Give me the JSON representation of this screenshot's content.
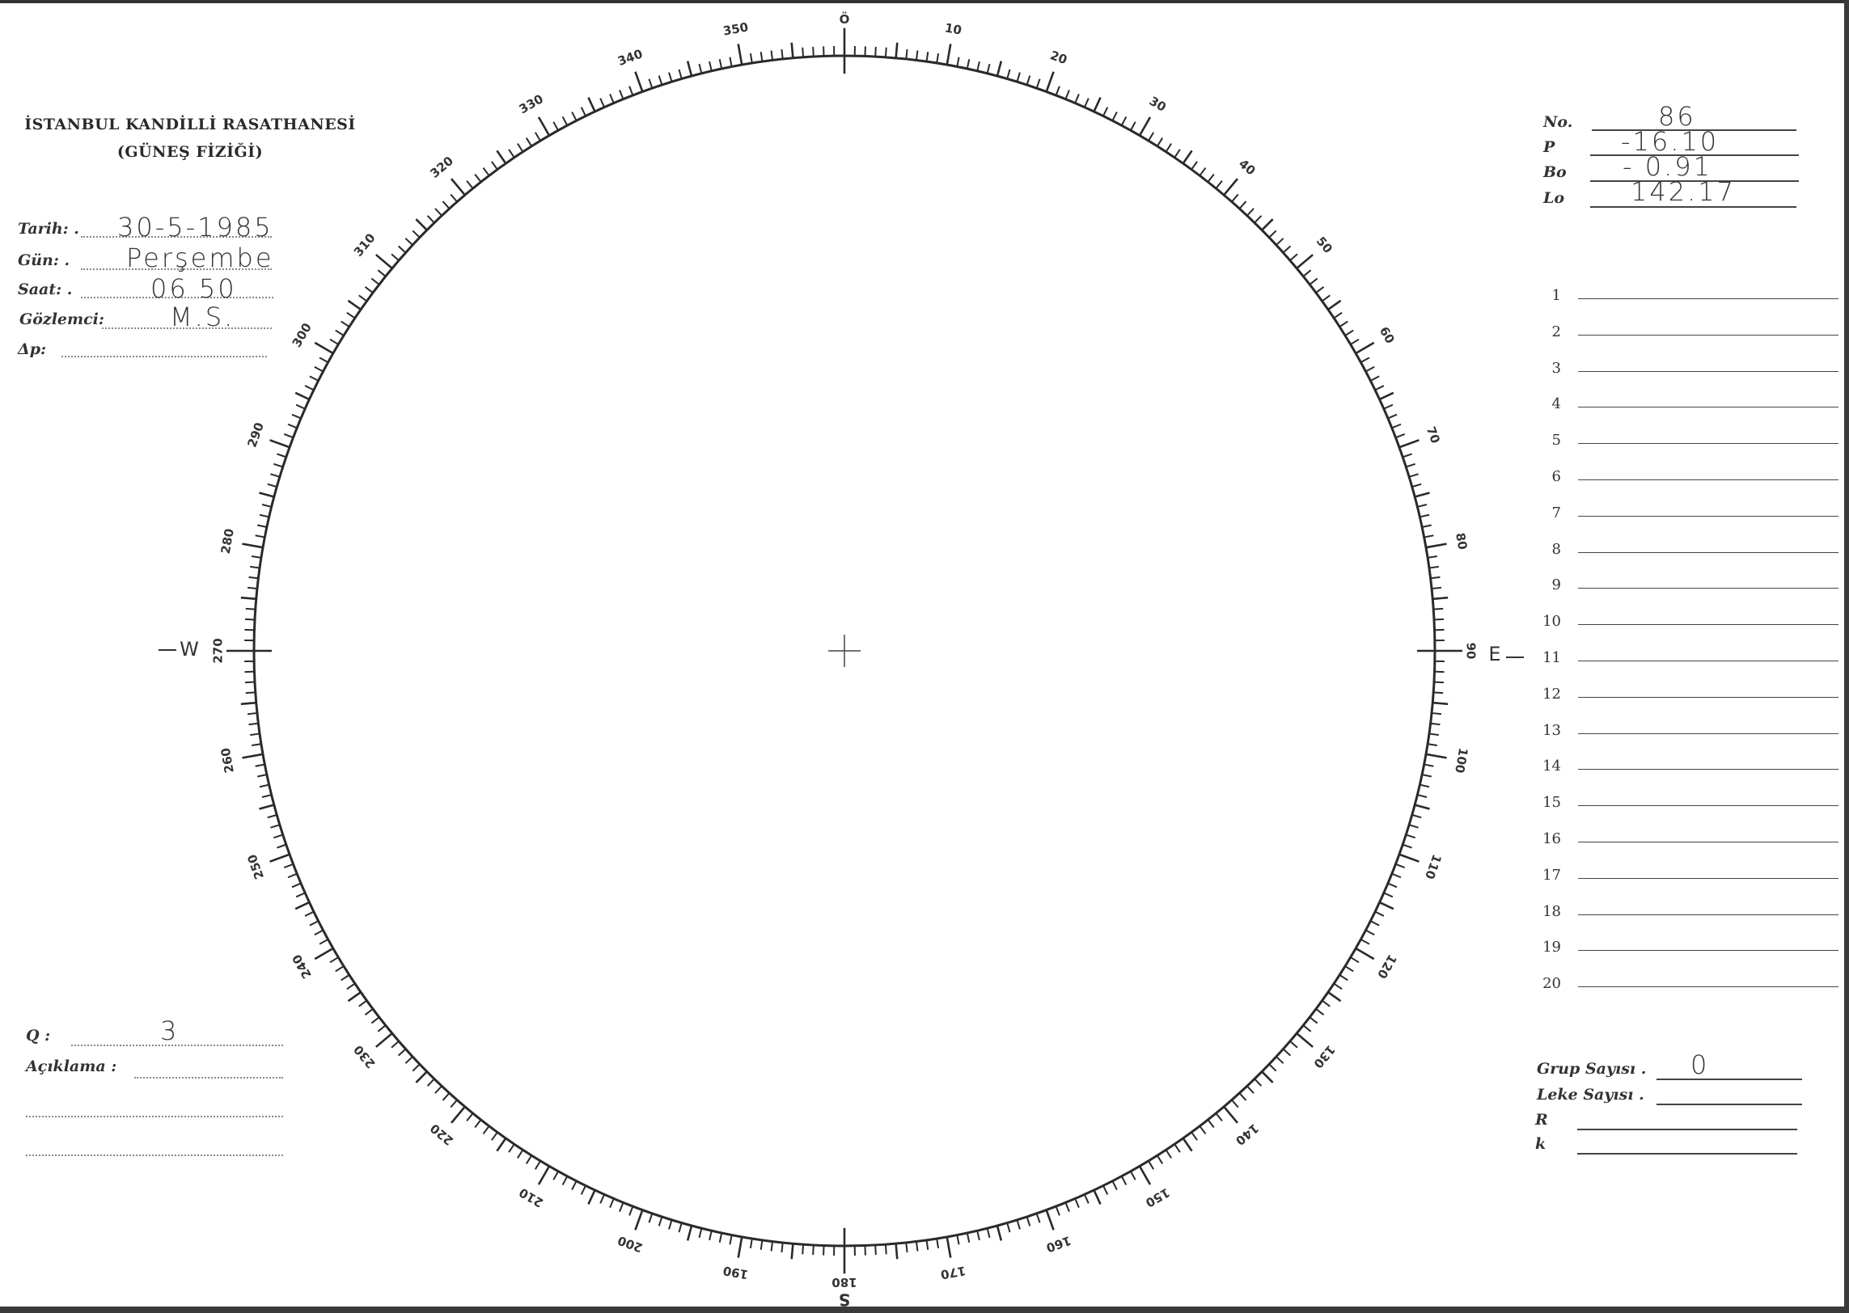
{
  "header": {
    "institution": "İSTANBUL KANDİLLİ RASATHANESİ",
    "department": "(GÜNEŞ FİZİĞİ)"
  },
  "observation": {
    "fields": [
      {
        "label": "Tarih: .",
        "value": "30-5-1985"
      },
      {
        "label": "Gün: .",
        "value": "Perşembe"
      },
      {
        "label": "Saat: .",
        "value": "06 50"
      },
      {
        "label": "Gözlemci:",
        "value": "M.S."
      },
      {
        "label": "Δp:",
        "value": ""
      }
    ]
  },
  "ephemeris": {
    "fields": [
      {
        "label": "No.",
        "value": "86"
      },
      {
        "label": "P",
        "value": "-16.10"
      },
      {
        "label": "Bo",
        "value": "- 0.91"
      },
      {
        "label": "Lo",
        "value": "142.17"
      }
    ]
  },
  "numbered_rows": [
    "1",
    "2",
    "3",
    "4",
    "5",
    "6",
    "7",
    "8",
    "9",
    "10",
    "11",
    "12",
    "13",
    "14",
    "15",
    "16",
    "17",
    "18",
    "19",
    "20"
  ],
  "quality": {
    "q_label": "Q :",
    "q_value": "3",
    "remarks_label": "Açıklama :"
  },
  "counts": {
    "fields": [
      {
        "label": "Grup Sayısı .",
        "value": "0"
      },
      {
        "label": "Leke Sayısı .",
        "value": ""
      },
      {
        "label": "R",
        "value": ""
      },
      {
        "label": "k",
        "value": ""
      }
    ]
  },
  "disk": {
    "scale_labels": [
      "Ö",
      "10",
      "20",
      "30",
      "40",
      "50",
      "60",
      "70",
      "80",
      "90",
      "100",
      "110",
      "120",
      "130",
      "140",
      "150",
      "160",
      "170",
      "180",
      "190",
      "200",
      "210",
      "220",
      "230",
      "240",
      "250",
      "260",
      "270",
      "280",
      "290",
      "300",
      "310",
      "320",
      "330",
      "340",
      "350"
    ],
    "cardinals": {
      "east": "E",
      "south": "S",
      "west": "W"
    }
  }
}
